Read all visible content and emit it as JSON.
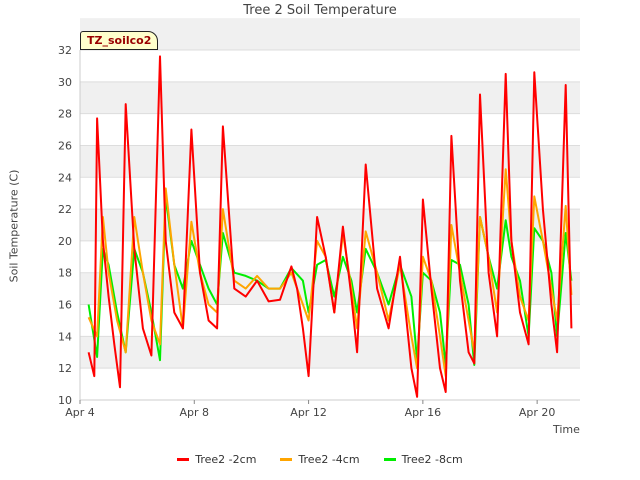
{
  "chart_data": {
    "type": "line",
    "title": "Tree 2 Soil Temperature",
    "xlabel": "Time",
    "ylabel": "Soil Temperature (C)",
    "annotation": "TZ_soilco2",
    "xlim": [
      "Apr 4",
      "Apr 21.5"
    ],
    "ylim": [
      10,
      32
    ],
    "x_ticks": [
      "Apr 4",
      "Apr 8",
      "Apr 12",
      "Apr 16",
      "Apr 20"
    ],
    "y_ticks": [
      10,
      12,
      14,
      16,
      18,
      20,
      22,
      24,
      26,
      28,
      30,
      32
    ],
    "legend_position": "bottom-center",
    "grid": true,
    "series": [
      {
        "name": "Tree2 -2cm",
        "color": "#ff0000",
        "x": [
          4.3,
          4.5,
          4.6,
          4.8,
          5.0,
          5.2,
          5.4,
          5.6,
          5.9,
          6.2,
          6.5,
          6.8,
          7.0,
          7.3,
          7.6,
          7.9,
          8.2,
          8.5,
          8.8,
          9.0,
          9.4,
          9.8,
          10.2,
          10.6,
          11.0,
          11.4,
          11.6,
          11.8,
          12.0,
          12.3,
          12.6,
          12.9,
          13.2,
          13.5,
          13.7,
          14.0,
          14.4,
          14.8,
          15.2,
          15.6,
          15.8,
          16.0,
          16.3,
          16.6,
          16.8,
          17.0,
          17.3,
          17.6,
          17.8,
          18.0,
          18.3,
          18.6,
          18.9,
          19.1,
          19.4,
          19.7,
          19.9,
          20.2,
          20.5,
          20.7,
          21.0,
          21.2
        ],
        "y": [
          13.0,
          11.5,
          27.7,
          20.0,
          16.5,
          13.5,
          10.8,
          28.6,
          19.5,
          14.5,
          12.8,
          31.6,
          20.0,
          15.5,
          14.5,
          27.0,
          18.0,
          15.0,
          14.5,
          27.2,
          17.0,
          16.5,
          17.5,
          16.2,
          16.3,
          18.4,
          17.0,
          14.5,
          11.5,
          21.5,
          19.0,
          15.5,
          20.9,
          16.5,
          13.0,
          24.8,
          17.0,
          14.5,
          19.0,
          12.0,
          10.2,
          22.6,
          17.0,
          12.0,
          10.5,
          26.6,
          17.5,
          13.0,
          12.3,
          29.2,
          18.0,
          14.0,
          30.5,
          20.0,
          15.5,
          13.5,
          30.6,
          22.0,
          16.0,
          13.0,
          29.8,
          14.5
        ]
      },
      {
        "name": "Tree2 -4cm",
        "color": "#ffa500",
        "x": [
          4.3,
          4.6,
          4.8,
          5.0,
          5.3,
          5.6,
          5.9,
          6.2,
          6.5,
          6.8,
          7.0,
          7.3,
          7.6,
          7.9,
          8.2,
          8.5,
          8.8,
          9.0,
          9.4,
          9.8,
          10.2,
          10.6,
          11.0,
          11.4,
          11.8,
          12.0,
          12.3,
          12.6,
          12.9,
          13.2,
          13.5,
          13.7,
          14.0,
          14.4,
          14.8,
          15.2,
          15.6,
          15.8,
          16.0,
          16.3,
          16.6,
          16.8,
          17.0,
          17.3,
          17.6,
          17.8,
          18.0,
          18.3,
          18.6,
          18.9,
          19.1,
          19.4,
          19.7,
          19.9,
          20.2,
          20.5,
          20.7,
          21.0,
          21.2
        ],
        "y": [
          15.2,
          14.0,
          21.5,
          18.0,
          15.0,
          13.0,
          21.5,
          18.0,
          15.0,
          13.5,
          23.3,
          18.5,
          14.5,
          21.2,
          18.0,
          16.0,
          15.5,
          22.0,
          17.5,
          17.0,
          17.8,
          17.0,
          17.0,
          18.0,
          16.0,
          15.0,
          20.0,
          19.0,
          15.5,
          20.5,
          17.0,
          14.5,
          20.6,
          18.0,
          15.0,
          18.5,
          14.0,
          12.0,
          19.0,
          17.5,
          14.0,
          11.5,
          21.0,
          18.0,
          15.0,
          13.0,
          21.5,
          19.0,
          15.5,
          24.5,
          20.0,
          16.5,
          15.0,
          22.8,
          20.0,
          17.0,
          15.0,
          22.2,
          16.6
        ]
      },
      {
        "name": "Tree2 -8cm",
        "color": "#00ee00",
        "x": [
          4.3,
          4.6,
          4.8,
          5.0,
          5.3,
          5.6,
          5.9,
          6.2,
          6.5,
          6.8,
          7.0,
          7.3,
          7.6,
          7.9,
          8.2,
          8.5,
          8.8,
          9.0,
          9.4,
          9.8,
          10.2,
          10.6,
          11.0,
          11.4,
          11.8,
          12.0,
          12.3,
          12.6,
          12.9,
          13.2,
          13.5,
          13.7,
          14.0,
          14.4,
          14.8,
          15.2,
          15.6,
          15.8,
          16.0,
          16.3,
          16.6,
          16.8,
          17.0,
          17.3,
          17.6,
          17.8,
          18.0,
          18.3,
          18.6,
          18.9,
          19.1,
          19.4,
          19.7,
          19.9,
          20.2,
          20.5,
          20.7,
          21.0,
          21.2
        ],
        "y": [
          16.0,
          12.7,
          19.5,
          18.5,
          15.5,
          13.0,
          19.5,
          18.0,
          15.5,
          12.5,
          22.8,
          18.5,
          17.0,
          20.0,
          18.5,
          17.0,
          16.0,
          20.5,
          18.0,
          17.8,
          17.5,
          17.0,
          17.0,
          18.3,
          17.5,
          15.5,
          18.5,
          18.8,
          16.5,
          19.0,
          17.5,
          15.5,
          19.5,
          18.0,
          16.0,
          18.5,
          16.5,
          12.5,
          18.0,
          17.5,
          15.5,
          12.2,
          18.8,
          18.5,
          16.0,
          12.2,
          21.5,
          19.0,
          17.0,
          21.3,
          19.0,
          17.5,
          14.0,
          20.8,
          20.0,
          18.0,
          14.0,
          20.5,
          17.5
        ]
      }
    ]
  }
}
